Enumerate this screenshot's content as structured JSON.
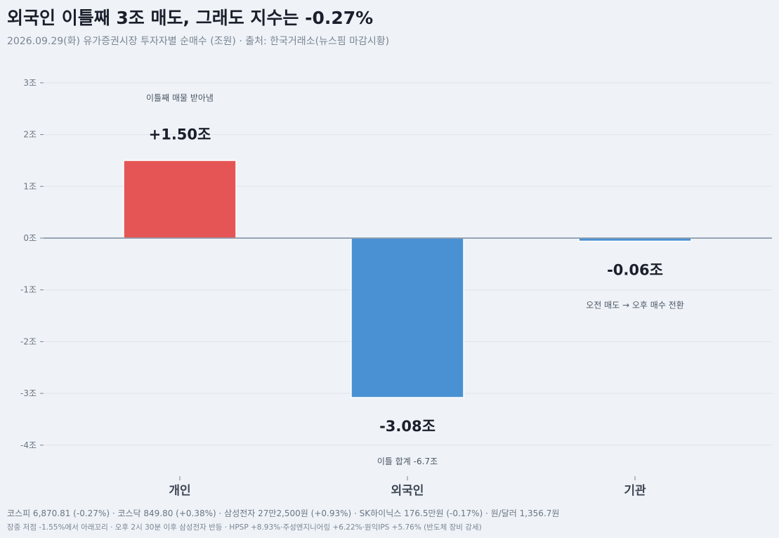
{
  "header": {
    "title": "외국인 이틀째 3조 매도, 그래도 지수는 -0.27%",
    "subtitle": "2026.09.29(화) 유가증권시장 투자자별 순매수 (조원)  ·  출처: 한국거래소(뉴스핌 마감시황)"
  },
  "chart_data": {
    "type": "bar",
    "categories": [
      "개인",
      "외국인",
      "기관"
    ],
    "values": [
      1.5,
      -3.08,
      -0.06
    ],
    "value_labels": [
      "+1.50조",
      "-3.08조",
      "-0.06조"
    ],
    "annotations": [
      "이틀째 매물 받아냄",
      "이틀 합계 -6.7조",
      "오전 매도 → 오후 매수 전환"
    ],
    "colors": [
      "#e55555",
      "#4a91d4",
      "#4a91d4"
    ],
    "ylim": [
      -4.5,
      3.2
    ],
    "yticks": [
      3,
      2,
      1,
      0,
      -1,
      -2,
      -3,
      -4
    ],
    "ytick_labels": [
      "3조",
      "2조",
      "1조",
      "0조",
      "-1조",
      "-2조",
      "-3조",
      "-4조"
    ],
    "grid": true,
    "zero_line_color": "#7a8aa0"
  },
  "footer": {
    "line1": "코스피 6,870.81 (-0.27%) · 코스닥 849.80 (+0.38%) · 삼성전자 27만2,500원 (+0.93%) · SK하이닉스 176.5만원 (-0.17%) · 원/달러 1,356.7원",
    "line2": "장중 저점 -1.55%에서 아래꼬리 · 오후 2시 30분 이후 삼성전자 반등 · HPSP +8.93%·주성엔지니어링 +6.22%·원익IPS +5.76% (반도체 장비 강세)"
  }
}
